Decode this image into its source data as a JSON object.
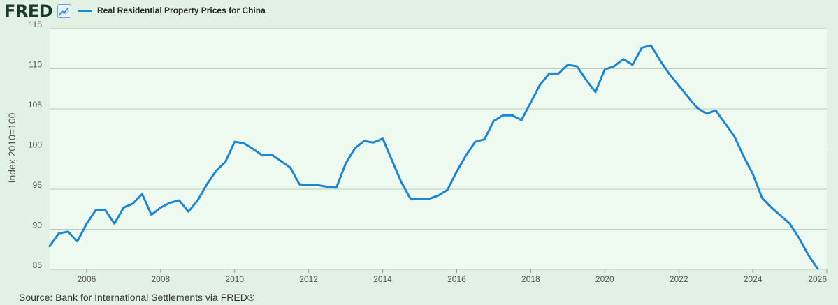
{
  "header": {
    "logo_text": "FRED",
    "legend_label": "Real Residential Property Prices for China"
  },
  "source_text": "Source: Bank for International Settlements via FRED®",
  "colors": {
    "background": "#e1f1e4",
    "plot_background": "#eefaef",
    "line": "#1b86d3",
    "grid": "#b8cfb9"
  },
  "chart_data": {
    "type": "line",
    "title": "",
    "xlabel": "",
    "ylabel": "Index 2010=100",
    "xlim": [
      "2005-01-01",
      "2026-01-01"
    ],
    "ylim": [
      85,
      115
    ],
    "y_ticks": [
      85,
      90,
      95,
      100,
      105,
      110,
      115
    ],
    "x_ticks": [
      "2006",
      "2008",
      "2010",
      "2012",
      "2014",
      "2016",
      "2018",
      "2020",
      "2022",
      "2024",
      "2026"
    ],
    "grid": true,
    "legend_position": "top-left",
    "series": [
      {
        "name": "Real Residential Property Prices for China",
        "x": [
          "2005-01-01",
          "2005-04-01",
          "2005-07-01",
          "2005-10-01",
          "2006-01-01",
          "2006-04-01",
          "2006-07-01",
          "2006-10-01",
          "2007-01-01",
          "2007-04-01",
          "2007-07-01",
          "2007-10-01",
          "2008-01-01",
          "2008-04-01",
          "2008-07-01",
          "2008-10-01",
          "2009-01-01",
          "2009-04-01",
          "2009-07-01",
          "2009-10-01",
          "2010-01-01",
          "2010-04-01",
          "2010-07-01",
          "2010-10-01",
          "2011-01-01",
          "2011-04-01",
          "2011-07-01",
          "2011-10-01",
          "2012-01-01",
          "2012-04-01",
          "2012-07-01",
          "2012-10-01",
          "2013-01-01",
          "2013-04-01",
          "2013-07-01",
          "2013-10-01",
          "2014-01-01",
          "2014-04-01",
          "2014-07-01",
          "2014-10-01",
          "2015-01-01",
          "2015-04-01",
          "2015-07-01",
          "2015-10-01",
          "2016-01-01",
          "2016-04-01",
          "2016-07-01",
          "2016-10-01",
          "2017-01-01",
          "2017-04-01",
          "2017-07-01",
          "2017-10-01",
          "2018-01-01",
          "2018-04-01",
          "2018-07-01",
          "2018-10-01",
          "2019-01-01",
          "2019-04-01",
          "2019-07-01",
          "2019-10-01",
          "2020-01-01",
          "2020-04-01",
          "2020-07-01",
          "2020-10-01",
          "2021-01-01",
          "2021-04-01",
          "2021-07-01",
          "2021-10-01",
          "2022-01-01",
          "2022-04-01",
          "2022-07-01",
          "2022-10-01",
          "2023-01-01",
          "2023-04-01",
          "2023-07-01",
          "2023-10-01",
          "2024-01-01",
          "2024-04-01",
          "2024-07-01",
          "2024-10-01",
          "2025-01-01",
          "2025-04-01",
          "2025-07-01",
          "2025-10-01"
        ],
        "values": [
          87.9,
          89.5,
          89.7,
          88.5,
          90.7,
          92.4,
          92.4,
          90.7,
          92.7,
          93.2,
          94.4,
          91.8,
          92.7,
          93.3,
          93.6,
          92.2,
          93.6,
          95.6,
          97.3,
          98.4,
          100.9,
          100.7,
          100.0,
          99.2,
          99.3,
          98.5,
          97.7,
          95.6,
          95.5,
          95.5,
          95.3,
          95.2,
          98.2,
          100.1,
          101.0,
          100.8,
          101.3,
          98.6,
          95.9,
          93.8,
          93.8,
          93.8,
          94.2,
          94.9,
          97.2,
          99.2,
          100.9,
          101.2,
          103.5,
          104.2,
          104.2,
          103.6,
          105.8,
          108.0,
          109.4,
          109.4,
          110.5,
          110.3,
          108.6,
          107.1,
          109.9,
          110.3,
          111.2,
          110.5,
          112.6,
          112.9,
          111.0,
          109.3,
          107.9,
          106.5,
          105.1,
          104.4,
          104.8,
          103.2,
          101.6,
          99.1,
          96.9,
          93.9,
          92.7,
          91.7,
          90.7,
          88.9,
          86.8,
          85.1
        ]
      }
    ]
  }
}
